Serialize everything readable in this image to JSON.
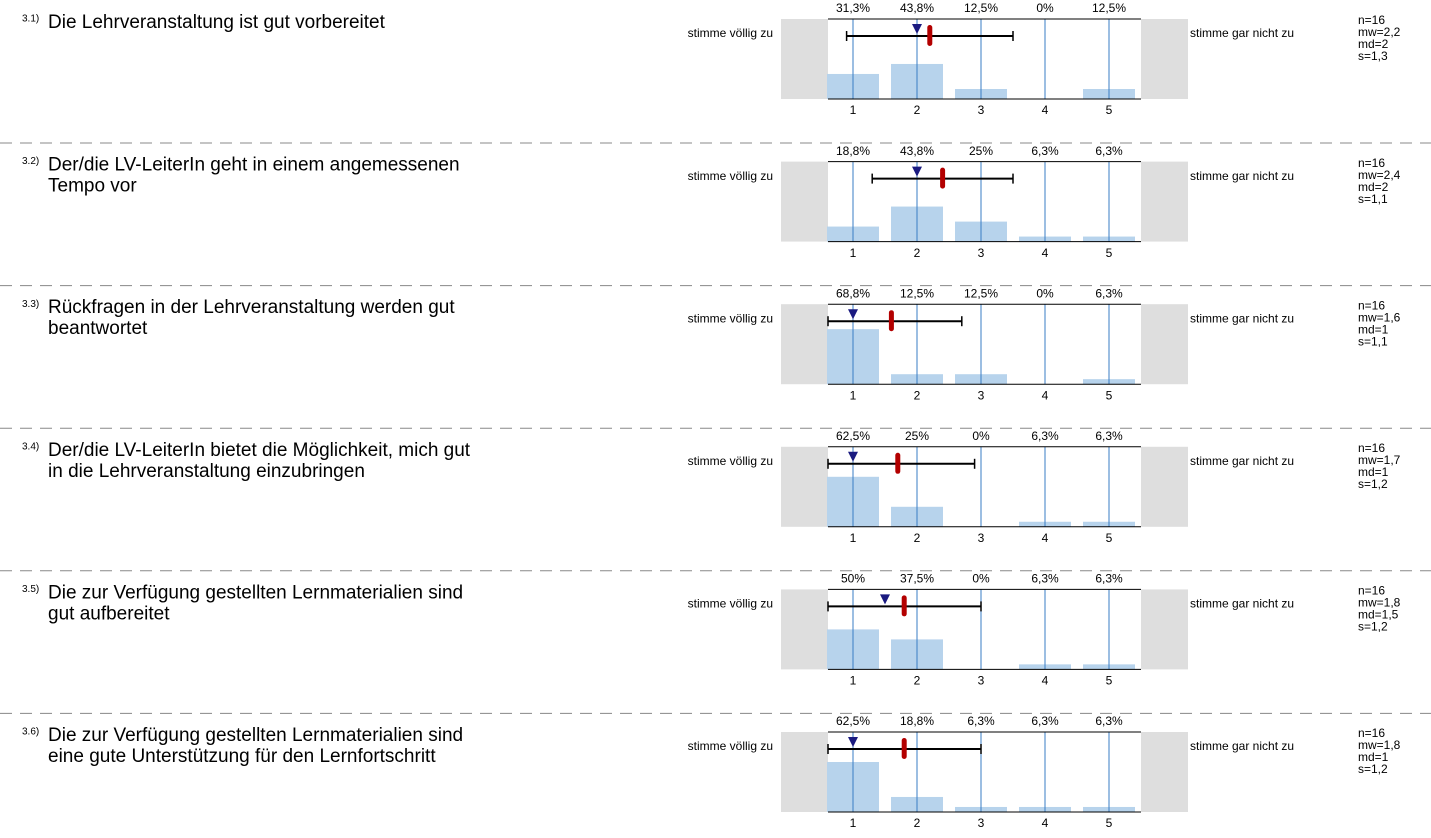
{
  "chart_data": [
    {
      "type": "bar",
      "number": "3.1)",
      "question": [
        "Die Lehrveranstaltung ist gut vorbereitet"
      ],
      "left_label": "stimme völlig zu",
      "right_label": "stimme gar nicht zu",
      "categories": [
        "1",
        "2",
        "3",
        "4",
        "5"
      ],
      "values": [
        31.3,
        43.8,
        12.5,
        0,
        12.5
      ],
      "value_labels": [
        "31,3%",
        "43,8%",
        "12,5%",
        "0%",
        "12,5%"
      ],
      "ylim": [
        0,
        100
      ],
      "color": "#b7d3ec",
      "n": {
        "value": 16,
        "label": "n=16"
      },
      "mean": {
        "value": 2.2,
        "label": "mw=2,2"
      },
      "median": {
        "value": 2,
        "label": "md=2"
      },
      "sd": {
        "value": 1.3,
        "label": "s=1,3"
      }
    },
    {
      "type": "bar",
      "number": "3.2)",
      "question": [
        "Der/die LV-LeiterIn geht in einem angemessenen",
        "Tempo vor"
      ],
      "left_label": "stimme völlig zu",
      "right_label": "stimme gar nicht zu",
      "categories": [
        "1",
        "2",
        "3",
        "4",
        "5"
      ],
      "values": [
        18.8,
        43.8,
        25,
        6.3,
        6.3
      ],
      "value_labels": [
        "18,8%",
        "43,8%",
        "25%",
        "6,3%",
        "6,3%"
      ],
      "ylim": [
        0,
        100
      ],
      "color": "#b7d3ec",
      "n": {
        "value": 16,
        "label": "n=16"
      },
      "mean": {
        "value": 2.4,
        "label": "mw=2,4"
      },
      "median": {
        "value": 2,
        "label": "md=2"
      },
      "sd": {
        "value": 1.1,
        "label": "s=1,1"
      }
    },
    {
      "type": "bar",
      "number": "3.3)",
      "question": [
        "Rückfragen in der Lehrveranstaltung werden gut",
        "beantwortet"
      ],
      "left_label": "stimme völlig zu",
      "right_label": "stimme gar nicht zu",
      "categories": [
        "1",
        "2",
        "3",
        "4",
        "5"
      ],
      "values": [
        68.8,
        12.5,
        12.5,
        0,
        6.3
      ],
      "value_labels": [
        "68,8%",
        "12,5%",
        "12,5%",
        "0%",
        "6,3%"
      ],
      "ylim": [
        0,
        100
      ],
      "color": "#b7d3ec",
      "n": {
        "value": 16,
        "label": "n=16"
      },
      "mean": {
        "value": 1.6,
        "label": "mw=1,6"
      },
      "median": {
        "value": 1,
        "label": "md=1"
      },
      "sd": {
        "value": 1.1,
        "label": "s=1,1"
      }
    },
    {
      "type": "bar",
      "number": "3.4)",
      "question": [
        "Der/die LV-LeiterIn bietet die Möglichkeit, mich gut",
        "in die Lehrveranstaltung einzubringen"
      ],
      "left_label": "stimme völlig zu",
      "right_label": "stimme gar nicht zu",
      "categories": [
        "1",
        "2",
        "3",
        "4",
        "5"
      ],
      "values": [
        62.5,
        25,
        0,
        6.3,
        6.3
      ],
      "value_labels": [
        "62,5%",
        "25%",
        "0%",
        "6,3%",
        "6,3%"
      ],
      "ylim": [
        0,
        100
      ],
      "color": "#b7d3ec",
      "n": {
        "value": 16,
        "label": "n=16"
      },
      "mean": {
        "value": 1.7,
        "label": "mw=1,7"
      },
      "median": {
        "value": 1,
        "label": "md=1"
      },
      "sd": {
        "value": 1.2,
        "label": "s=1,2"
      }
    },
    {
      "type": "bar",
      "number": "3.5)",
      "question": [
        "Die zur Verfügung gestellten Lernmaterialien sind",
        "gut aufbereitet"
      ],
      "left_label": "stimme völlig zu",
      "right_label": "stimme gar nicht zu",
      "categories": [
        "1",
        "2",
        "3",
        "4",
        "5"
      ],
      "values": [
        50,
        37.5,
        0,
        6.3,
        6.3
      ],
      "value_labels": [
        "50%",
        "37,5%",
        "0%",
        "6,3%",
        "6,3%"
      ],
      "ylim": [
        0,
        100
      ],
      "color": "#b7d3ec",
      "n": {
        "value": 16,
        "label": "n=16"
      },
      "mean": {
        "value": 1.8,
        "label": "mw=1,8"
      },
      "median": {
        "value": 1.5,
        "label": "md=1,5"
      },
      "sd": {
        "value": 1.2,
        "label": "s=1,2"
      }
    },
    {
      "type": "bar",
      "number": "3.6)",
      "question": [
        "Die zur Verfügung gestellten Lernmaterialien sind",
        "eine gute Unterstützung für den Lernfortschritt"
      ],
      "left_label": "stimme völlig zu",
      "right_label": "stimme gar nicht zu",
      "categories": [
        "1",
        "2",
        "3",
        "4",
        "5"
      ],
      "values": [
        62.5,
        18.8,
        6.3,
        6.3,
        6.3
      ],
      "value_labels": [
        "62,5%",
        "18,8%",
        "6,3%",
        "6,3%",
        "6,3%"
      ],
      "ylim": [
        0,
        100
      ],
      "color": "#b7d3ec",
      "n": {
        "value": 16,
        "label": "n=16"
      },
      "mean": {
        "value": 1.8,
        "label": "mw=1,8"
      },
      "median": {
        "value": 1,
        "label": "md=1"
      },
      "sd": {
        "value": 1.2,
        "label": "s=1,2"
      }
    }
  ]
}
